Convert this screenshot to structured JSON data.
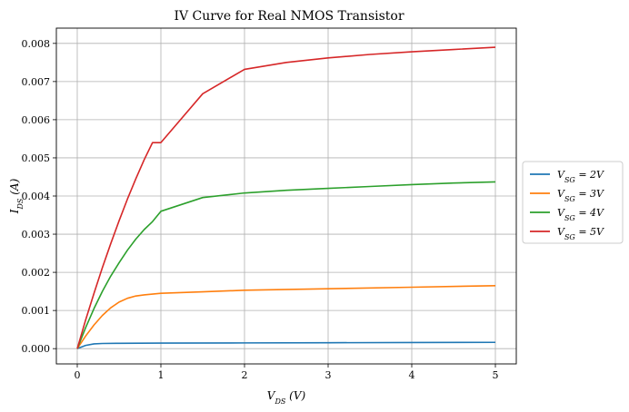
{
  "chart_data": {
    "type": "line",
    "title": "IV Curve for Real NMOS Transistor",
    "xlabel": "V_DS (V)",
    "ylabel": "I_DS (A)",
    "xlim": [
      -0.25,
      5.25
    ],
    "ylim": [
      -0.0004,
      0.0084
    ],
    "xticks": [
      0,
      1,
      2,
      3,
      4,
      5
    ],
    "xtick_labels": [
      "0",
      "1",
      "2",
      "3",
      "4",
      "5"
    ],
    "yticks": [
      0.0,
      0.001,
      0.002,
      0.003,
      0.004,
      0.005,
      0.006,
      0.007,
      0.008
    ],
    "ytick_labels": [
      "0.000",
      "0.001",
      "0.002",
      "0.003",
      "0.004",
      "0.005",
      "0.006",
      "0.007",
      "0.008"
    ],
    "grid": true,
    "legend_position": "right-outside",
    "series": [
      {
        "name": "V_SG = 2V",
        "color": "#1f77b4",
        "x": [
          0,
          0.1,
          0.2,
          0.3,
          0.5,
          1.0,
          2.0,
          3.0,
          4.0,
          5.0
        ],
        "y": [
          0,
          8.5e-05,
          0.000125,
          0.000135,
          0.00014,
          0.000145,
          0.00015,
          0.000155,
          0.00016,
          0.000165
        ]
      },
      {
        "name": "V_SG = 3V",
        "color": "#ff7f0e",
        "x": [
          0,
          0.1,
          0.2,
          0.3,
          0.4,
          0.5,
          0.6,
          0.7,
          0.8,
          1.0,
          1.5,
          2.0,
          3.0,
          4.0,
          5.0
        ],
        "y": [
          0,
          0.00033,
          0.00062,
          0.00087,
          0.00107,
          0.00122,
          0.00132,
          0.00138,
          0.00141,
          0.00145,
          0.00149,
          0.00153,
          0.00157,
          0.00161,
          0.00165
        ]
      },
      {
        "name": "V_SG = 4V",
        "color": "#2ca02c",
        "x": [
          0,
          0.1,
          0.2,
          0.3,
          0.4,
          0.5,
          0.6,
          0.7,
          0.8,
          0.9,
          1.0,
          1.5,
          2.0,
          2.5,
          3.0,
          3.5,
          4.0,
          4.5,
          5.0
        ],
        "y": [
          0,
          0.00055,
          0.00105,
          0.0015,
          0.0019,
          0.00225,
          0.00258,
          0.00287,
          0.00312,
          0.00333,
          0.0036,
          0.00396,
          0.00408,
          0.00415,
          0.0042,
          0.00425,
          0.0043,
          0.00434,
          0.00437
        ]
      },
      {
        "name": "V_SG = 5V",
        "color": "#d62728",
        "x": [
          0,
          0.1,
          0.2,
          0.3,
          0.4,
          0.5,
          0.6,
          0.7,
          0.8,
          0.9,
          1.0,
          1.5,
          2.0,
          2.5,
          3.0,
          3.5,
          4.0,
          4.5,
          5.0
        ],
        "y": [
          0,
          0.00075,
          0.00145,
          0.00212,
          0.00275,
          0.00335,
          0.00392,
          0.00445,
          0.00495,
          0.0054,
          0.0054,
          0.00668,
          0.00732,
          0.0075,
          0.00762,
          0.00771,
          0.00778,
          0.00784,
          0.0079
        ]
      }
    ],
    "legend": [
      {
        "base": "V",
        "sub": "SG",
        "suffix": " = 2V"
      },
      {
        "base": "V",
        "sub": "SG",
        "suffix": " = 3V"
      },
      {
        "base": "V",
        "sub": "SG",
        "suffix": " = 4V"
      },
      {
        "base": "V",
        "sub": "SG",
        "suffix": " = 5V"
      }
    ],
    "xlabel_parts": {
      "base": "V",
      "sub": "DS",
      "suffix": " (V)"
    },
    "ylabel_parts": {
      "base": "I",
      "sub": "DS",
      "suffix": " (A)"
    }
  }
}
